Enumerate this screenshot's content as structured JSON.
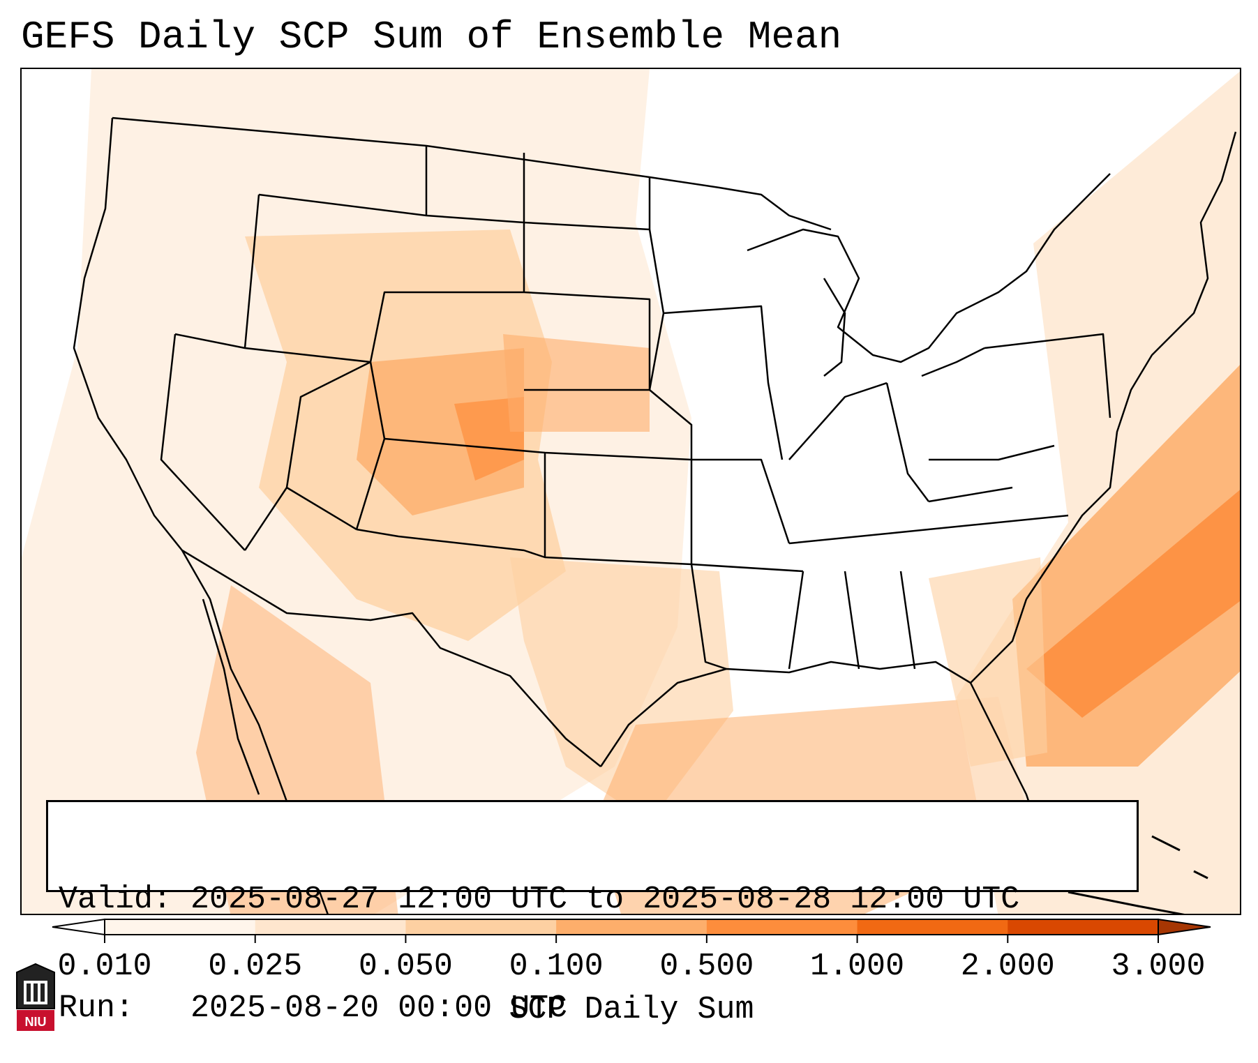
{
  "title": "GEFS Daily SCP Sum of Ensemble Mean",
  "info": {
    "valid_label": "Valid:",
    "valid_range": "2025-08-27 12:00 UTC to 2025-08-28 12:00 UTC",
    "run_label": "Run:",
    "run_time": "2025-08-20 00:00 UTC"
  },
  "colorbar": {
    "label": "SCP Daily Sum",
    "ticks": [
      "0.010",
      "0.025",
      "0.050",
      "0.100",
      "0.500",
      "1.000",
      "2.000",
      "3.000"
    ],
    "colors": [
      "#fff5eb",
      "#fee6ce",
      "#fdd0a2",
      "#fdae6b",
      "#fd8d3c",
      "#f16913",
      "#d94801"
    ],
    "under_color": "#ffffff",
    "over_color": "#a63603"
  },
  "logo": {
    "text": "NIU"
  },
  "map_layers": [
    "state-borders",
    "coastlines",
    "great-lakes",
    "scp-shading"
  ]
}
